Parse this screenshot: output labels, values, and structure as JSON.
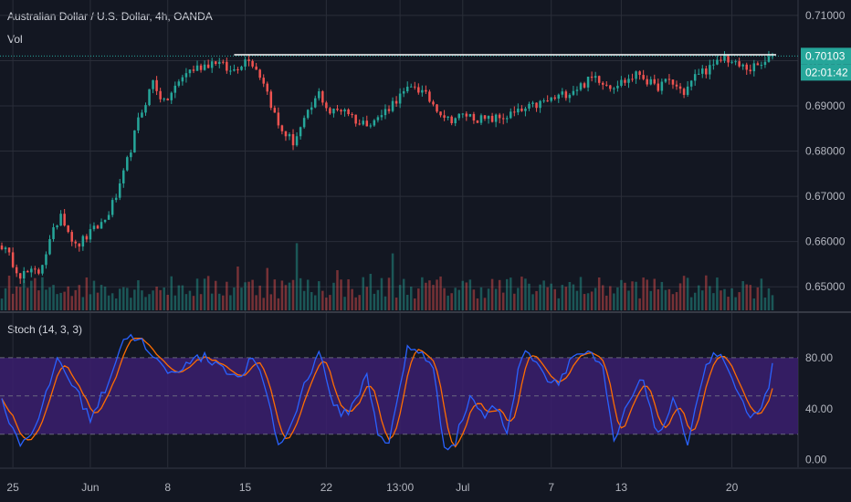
{
  "header": {
    "symbol": "Australian Dollar / U.S. Dollar, 4h, OANDA",
    "volume_label": "Vol",
    "stoch_label": "Stoch (14, 3, 3)"
  },
  "price_axis": {
    "ticks": [
      "0.71000",
      "0.70000",
      "0.69000",
      "0.68000",
      "0.67000",
      "0.66000",
      "0.65000"
    ],
    "range": [
      0.6448,
      0.7124
    ]
  },
  "badges": {
    "last_price": "0.70103",
    "countdown": "02:01:42"
  },
  "stoch_axis": {
    "ticks": [
      "80.00",
      "40.00",
      "0.00"
    ],
    "range": [
      -6,
      110
    ],
    "band": [
      20,
      80
    ]
  },
  "time_axis": {
    "labels": [
      "25",
      "Jun",
      "8",
      "15",
      "22",
      "13:00",
      "Jul",
      "7",
      "13",
      "20"
    ]
  },
  "colors": {
    "background": "#131722",
    "up": "#26a69a",
    "down": "#ef5350",
    "resistance": "#ffffff",
    "stoch_k": "#2962ff",
    "stoch_d": "#ff6d00",
    "stoch_band": "#3b1e6e",
    "price_badge": "#26a69a",
    "grid": "#2a2e39"
  },
  "chart_data": {
    "type": "candlestick",
    "symbol": "AUDUSD",
    "timeframe": "4h",
    "price_range": [
      0.6448,
      0.7124
    ],
    "last_price": 0.70103,
    "resistance_level": 0.7013,
    "anchors": [
      [
        0,
        0.6592
      ],
      [
        5,
        0.6528
      ],
      [
        10,
        0.6533
      ],
      [
        16,
        0.6665
      ],
      [
        20,
        0.6588
      ],
      [
        28,
        0.6648
      ],
      [
        32,
        0.6718
      ],
      [
        37,
        0.6866
      ],
      [
        41,
        0.6955
      ],
      [
        44,
        0.6905
      ],
      [
        50,
        0.6975
      ],
      [
        58,
        0.7
      ],
      [
        62,
        0.6975
      ],
      [
        67,
        0.7008
      ],
      [
        71,
        0.6955
      ],
      [
        75,
        0.6855
      ],
      [
        79,
        0.682
      ],
      [
        82,
        0.6865
      ],
      [
        86,
        0.6928
      ],
      [
        89,
        0.6885
      ],
      [
        93,
        0.6895
      ],
      [
        97,
        0.686
      ],
      [
        102,
        0.6872
      ],
      [
        107,
        0.6915
      ],
      [
        112,
        0.6945
      ],
      [
        117,
        0.6905
      ],
      [
        121,
        0.687
      ],
      [
        126,
        0.688
      ],
      [
        131,
        0.6868
      ],
      [
        136,
        0.6875
      ],
      [
        141,
        0.6888
      ],
      [
        146,
        0.6905
      ],
      [
        151,
        0.692
      ],
      [
        157,
        0.6945
      ],
      [
        161,
        0.6965
      ],
      [
        165,
        0.6945
      ],
      [
        169,
        0.6955
      ],
      [
        173,
        0.6972
      ],
      [
        177,
        0.694
      ],
      [
        181,
        0.6955
      ],
      [
        185,
        0.693
      ],
      [
        189,
        0.6975
      ],
      [
        193,
        0.6985
      ],
      [
        196,
        0.701
      ],
      [
        199,
        0.699
      ],
      [
        203,
        0.6982
      ],
      [
        207,
        0.6993
      ],
      [
        209,
        0.701
      ]
    ],
    "volume_axis_max": 1.0,
    "stochastic": {
      "period": [
        14,
        3,
        3
      ],
      "upper_band": 80,
      "lower_band": 20,
      "k_anchors": [
        [
          0,
          45
        ],
        [
          5,
          12
        ],
        [
          10,
          30
        ],
        [
          15,
          80
        ],
        [
          20,
          55
        ],
        [
          24,
          32
        ],
        [
          28,
          55
        ],
        [
          33,
          95
        ],
        [
          37,
          97
        ],
        [
          40,
          82
        ],
        [
          43,
          74
        ],
        [
          47,
          66
        ],
        [
          50,
          78
        ],
        [
          55,
          80
        ],
        [
          60,
          74
        ],
        [
          64,
          62
        ],
        [
          68,
          80
        ],
        [
          72,
          52
        ],
        [
          75,
          10
        ],
        [
          78,
          24
        ],
        [
          82,
          58
        ],
        [
          86,
          86
        ],
        [
          89,
          52
        ],
        [
          92,
          33
        ],
        [
          95,
          42
        ],
        [
          99,
          66
        ],
        [
          102,
          22
        ],
        [
          105,
          12
        ],
        [
          110,
          87
        ],
        [
          114,
          85
        ],
        [
          117,
          70
        ],
        [
          120,
          10
        ],
        [
          123,
          15
        ],
        [
          127,
          50
        ],
        [
          131,
          34
        ],
        [
          134,
          42
        ],
        [
          137,
          22
        ],
        [
          141,
          83
        ],
        [
          145,
          80
        ],
        [
          148,
          62
        ],
        [
          151,
          62
        ],
        [
          155,
          82
        ],
        [
          159,
          84
        ],
        [
          163,
          70
        ],
        [
          166,
          13
        ],
        [
          170,
          45
        ],
        [
          174,
          63
        ],
        [
          178,
          18
        ],
        [
          182,
          45
        ],
        [
          186,
          15
        ],
        [
          190,
          65
        ],
        [
          193,
          84
        ],
        [
          196,
          77
        ],
        [
          200,
          49
        ],
        [
          203,
          29
        ],
        [
          207,
          48
        ],
        [
          209,
          72
        ]
      ],
      "d_offset": 3
    }
  }
}
